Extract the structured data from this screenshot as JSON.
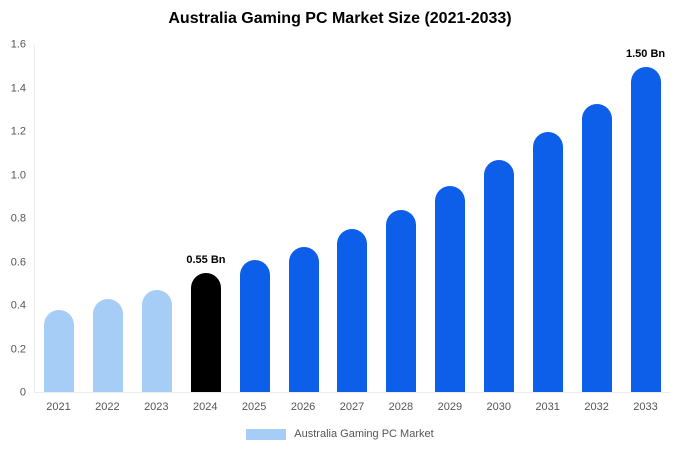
{
  "title": "Australia Gaming PC Market Size (2021-2033)",
  "colors": {
    "light_blue": "#a6cdf5",
    "dark_blue": "#0d5ee8",
    "highlight_black": "#000000",
    "axis_text": "#555555"
  },
  "legend": {
    "label": "Australia Gaming PC Market"
  },
  "chart_data": {
    "type": "bar",
    "title": "Australia Gaming PC Market Size (2021-2033)",
    "xlabel": "",
    "ylabel": "",
    "ylim": [
      0,
      1.6
    ],
    "grid": false,
    "legend_position": "bottom",
    "categories": [
      "2021",
      "2022",
      "2023",
      "2024",
      "2025",
      "2026",
      "2027",
      "2028",
      "2029",
      "2030",
      "2031",
      "2032",
      "2033"
    ],
    "values": [
      0.38,
      0.43,
      0.47,
      0.55,
      0.61,
      0.67,
      0.75,
      0.84,
      0.95,
      1.07,
      1.2,
      1.33,
      1.5
    ],
    "bar_colors": [
      "#a6cdf5",
      "#a6cdf5",
      "#a6cdf5",
      "#000000",
      "#0d5ee8",
      "#0d5ee8",
      "#0d5ee8",
      "#0d5ee8",
      "#0d5ee8",
      "#0d5ee8",
      "#0d5ee8",
      "#0d5ee8",
      "#0d5ee8"
    ],
    "annotations": [
      {
        "category": "2024",
        "text": "0.55 Bn"
      },
      {
        "category": "2033",
        "text": "1.50 Bn"
      }
    ],
    "yticks": [
      {
        "value": 0,
        "label": "0"
      },
      {
        "value": 0.2,
        "label": "0.2"
      },
      {
        "value": 0.4,
        "label": "0.4"
      },
      {
        "value": 0.6,
        "label": "0.6"
      },
      {
        "value": 0.8,
        "label": "0.8"
      },
      {
        "value": 1.0,
        "label": "1.0"
      },
      {
        "value": 1.2,
        "label": "1.2"
      },
      {
        "value": 1.4,
        "label": "1.4"
      },
      {
        "value": 1.6,
        "label": "1.6"
      }
    ],
    "series": [
      {
        "name": "Australia Gaming PC Market",
        "values": [
          0.38,
          0.43,
          0.47,
          0.55,
          0.61,
          0.67,
          0.75,
          0.84,
          0.95,
          1.07,
          1.2,
          1.33,
          1.5
        ]
      }
    ]
  }
}
